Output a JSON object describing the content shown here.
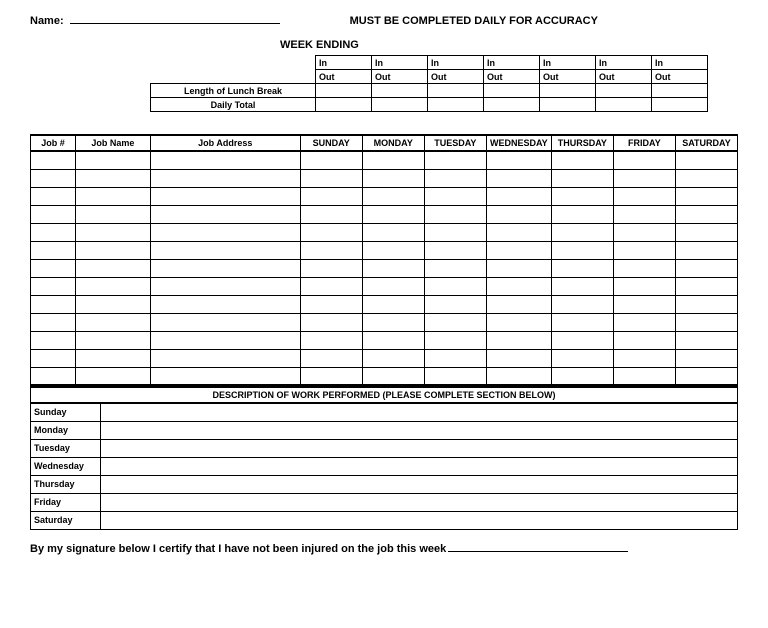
{
  "header": {
    "name_label": "Name:",
    "accuracy": "MUST BE COMPLETED DAILY FOR ACCURACY",
    "week_ending": "WEEK ENDING"
  },
  "time_table": {
    "in": "In",
    "out": "Out",
    "lunch": "Length of Lunch Break",
    "daily_total": "Daily Total",
    "day_count": 7
  },
  "job_table": {
    "headers": {
      "jobnum": "Job #",
      "jobname": "Job Name",
      "jobaddr": "Job Address",
      "days": [
        "SUNDAY",
        "MONDAY",
        "TUESDAY",
        "WEDNESDAY",
        "THURSDAY",
        "FRIDAY",
        "SATURDAY"
      ]
    },
    "row_count": 13
  },
  "desc_table": {
    "title": "DESCRIPTION OF WORK PERFORMED (PLEASE COMPLETE SECTION BELOW)",
    "days": [
      "Sunday",
      "Monday",
      "Tuesday",
      "Wednesday",
      "Thursday",
      "Friday",
      "Saturday"
    ]
  },
  "signature": "By my signature below I certify that I have not been injured on the job this week"
}
